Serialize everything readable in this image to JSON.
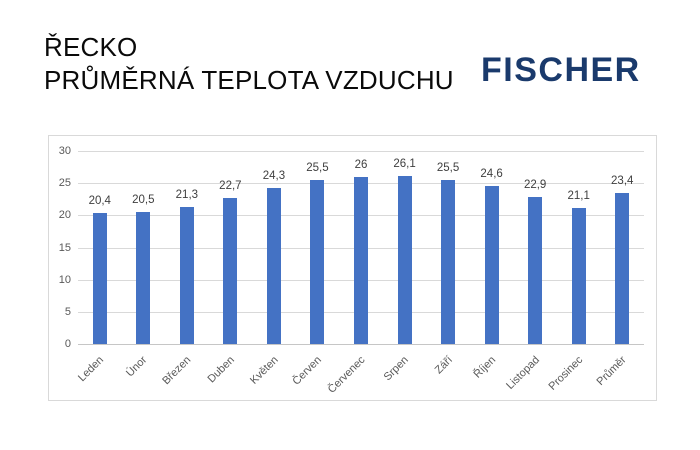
{
  "header": {
    "title_line1": "ŘECKO",
    "title_line2": "PRŮMĚRNÁ TEPLOTA VZDUCHU",
    "logo_text": "FISCHER"
  },
  "colors": {
    "bar": "#4472C4",
    "logo": "#1A3A6C",
    "title_text": "#0A0A0A",
    "axis_text": "#595959",
    "value_label_text": "#3F3F3F",
    "gridline": "#D9D9D9",
    "baseline": "#C6C6C6",
    "chart_border": "#D9D9D9",
    "background": "#FFFFFF"
  },
  "chart_data": {
    "type": "bar",
    "title": "ŘECKO — PRŮMĚRNÁ TEPLOTA VZDUCHU",
    "categories": [
      "Leden",
      "Únor",
      "Březen",
      "Duben",
      "Květen",
      "Červen",
      "Červenec",
      "Srpen",
      "Září",
      "Říjen",
      "Listopad",
      "Prosinec",
      "Průměr"
    ],
    "values": [
      20.4,
      20.5,
      21.3,
      22.7,
      24.3,
      25.5,
      26,
      26.1,
      25.5,
      24.6,
      22.9,
      21.1,
      23.4
    ],
    "value_labels": [
      "20,4",
      "20,5",
      "21,3",
      "22,7",
      "24,3",
      "25,5",
      "26",
      "26,1",
      "25,5",
      "24,6",
      "22,9",
      "21,1",
      "23,4"
    ],
    "xlabel": "",
    "ylabel": "",
    "ylim": [
      0,
      30
    ],
    "yticks": [
      0,
      5,
      10,
      15,
      20,
      25,
      30
    ],
    "ytick_labels": [
      "0",
      "5",
      "10",
      "15",
      "20",
      "25",
      "30"
    ],
    "grid": true,
    "legend": false,
    "x_label_rotation_deg": -45
  }
}
